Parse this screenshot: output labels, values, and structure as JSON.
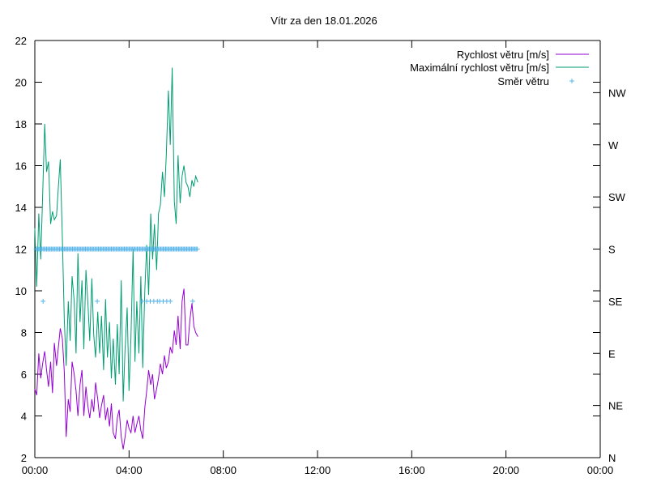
{
  "chart_data": {
    "type": "line",
    "title": "Vítr za den 18.01.2026",
    "x_ticks": [
      "00:00",
      "04:00",
      "08:00",
      "12:00",
      "16:00",
      "20:00",
      "00:00"
    ],
    "x_range_hours": [
      0,
      24
    ],
    "y_ticks": [
      "2",
      "4",
      "6",
      "8",
      "10",
      "12",
      "14",
      "16",
      "18",
      "20",
      "22"
    ],
    "ylim": [
      2,
      22
    ],
    "y2_ticks": [
      "N",
      "NE",
      "E",
      "SE",
      "S",
      "SW",
      "W",
      "NW"
    ],
    "grid": false,
    "legend_position": "top-right",
    "series": [
      {
        "name": "Rychlost větru [m/s]",
        "color": "#9400d3",
        "style": "line",
        "x": [
          0,
          0.08,
          0.17,
          0.25,
          0.33,
          0.42,
          0.5,
          0.58,
          0.67,
          0.75,
          0.83,
          0.92,
          1,
          1.08,
          1.17,
          1.25,
          1.33,
          1.42,
          1.5,
          1.58,
          1.67,
          1.75,
          1.83,
          1.92,
          2,
          2.08,
          2.17,
          2.25,
          2.33,
          2.42,
          2.5,
          2.58,
          2.67,
          2.75,
          2.83,
          2.92,
          3,
          3.08,
          3.17,
          3.25,
          3.33,
          3.42,
          3.5,
          3.58,
          3.67,
          3.75,
          3.83,
          3.92,
          4,
          4.08,
          4.17,
          4.25,
          4.33,
          4.42,
          4.5,
          4.58,
          4.67,
          4.75,
          4.83,
          4.92,
          5,
          5.08,
          5.17,
          5.25,
          5.33,
          5.42,
          5.5,
          5.58,
          5.67,
          5.75,
          5.83,
          5.92,
          6,
          6.08,
          6.17,
          6.25,
          6.33,
          6.42,
          6.5,
          6.58,
          6.67,
          6.75,
          6.83,
          6.92
        ],
        "values": [
          5.3,
          5.0,
          7.0,
          5.8,
          6.5,
          7.1,
          6.2,
          5.4,
          6.6,
          5.1,
          7.5,
          6.4,
          7.3,
          8.2,
          7.7,
          6.1,
          3.0,
          4.8,
          4.2,
          6.6,
          6.0,
          5.2,
          4.0,
          5.5,
          6.2,
          4.0,
          5.4,
          4.5,
          3.9,
          4.8,
          4.2,
          5.6,
          4.8,
          3.9,
          4.5,
          5.0,
          3.8,
          4.4,
          3.5,
          4.6,
          3.2,
          2.9,
          3.9,
          4.3,
          3.0,
          2.4,
          3.0,
          3.8,
          3.4,
          3.2,
          4.0,
          3.2,
          3.6,
          4.0,
          3.3,
          2.9,
          4.4,
          5.2,
          6.2,
          5.5,
          6.0,
          4.8,
          5.3,
          5.8,
          6.5,
          6.0,
          6.9,
          6.3,
          6.6,
          7.3,
          7.0,
          8.1,
          7.4,
          8.8,
          7.2,
          9.5,
          10.1,
          7.4,
          7.4,
          8.6,
          9.4,
          8.3,
          8.0,
          7.8
        ],
        "note": ""
      },
      {
        "name": "Maximální rychlost větru [m/s]",
        "color": "#009e73",
        "style": "line",
        "x": [
          0,
          0.08,
          0.17,
          0.25,
          0.33,
          0.42,
          0.5,
          0.58,
          0.67,
          0.75,
          0.83,
          0.92,
          1,
          1.08,
          1.17,
          1.25,
          1.33,
          1.42,
          1.5,
          1.58,
          1.67,
          1.75,
          1.83,
          1.92,
          2,
          2.08,
          2.17,
          2.25,
          2.33,
          2.42,
          2.5,
          2.58,
          2.67,
          2.75,
          2.83,
          2.92,
          3,
          3.08,
          3.17,
          3.25,
          3.33,
          3.42,
          3.5,
          3.58,
          3.67,
          3.75,
          3.83,
          3.92,
          4,
          4.08,
          4.17,
          4.25,
          4.33,
          4.42,
          4.5,
          4.58,
          4.67,
          4.75,
          4.83,
          4.92,
          5,
          5.08,
          5.17,
          5.25,
          5.33,
          5.42,
          5.5,
          5.58,
          5.67,
          5.75,
          5.83,
          5.92,
          6,
          6.08,
          6.17,
          6.25,
          6.33,
          6.42,
          6.5,
          6.58,
          6.67,
          6.75,
          6.83,
          6.92
        ],
        "values": [
          13.0,
          10.2,
          13.7,
          11.5,
          14.5,
          18.0,
          15.7,
          16.2,
          13.2,
          13.8,
          13.4,
          13.6,
          15.0,
          16.3,
          12.5,
          8.6,
          6.4,
          9.5,
          7.6,
          10.7,
          9.5,
          7.0,
          11.8,
          8.5,
          10.5,
          7.2,
          11.0,
          9.5,
          7.6,
          10.6,
          7.9,
          6.8,
          9.0,
          7.0,
          8.8,
          6.2,
          9.6,
          6.8,
          8.5,
          5.8,
          7.7,
          5.5,
          8.4,
          6.0,
          10.5,
          4.7,
          7.2,
          9.2,
          5.2,
          7.8,
          12.0,
          6.6,
          9.5,
          7.0,
          10.7,
          6.3,
          10.0,
          12.2,
          9.8,
          13.7,
          11.5,
          13.2,
          11.0,
          13.7,
          14.1,
          15.7,
          14.5,
          16.5,
          19.6,
          17.0,
          20.7,
          14.3,
          13.2,
          16.5,
          14.2,
          15.5,
          16.0,
          15.2,
          15.0,
          14.5,
          15.3,
          15.0,
          15.5,
          15.2
        ],
        "note": ""
      },
      {
        "name": "Směr větru",
        "color": "#56b4e9",
        "style": "points",
        "x": [
          0.05,
          0.1,
          0.15,
          0.2,
          0.25,
          0.3,
          0.35,
          0.4,
          0.45,
          0.5,
          0.55,
          0.6,
          0.65,
          0.7,
          0.75,
          0.8,
          0.85,
          0.9,
          0.95,
          1.0,
          1.05,
          1.1,
          1.15,
          1.2,
          1.25,
          1.3,
          1.35,
          1.4,
          1.45,
          1.5,
          1.55,
          1.6,
          1.65,
          1.7,
          1.75,
          1.8,
          1.85,
          1.9,
          1.95,
          2.0,
          2.05,
          2.1,
          2.15,
          2.2,
          2.25,
          2.3,
          2.35,
          2.4,
          2.45,
          2.5,
          2.55,
          2.6,
          2.65,
          2.7,
          2.75,
          2.8,
          2.85,
          2.9,
          2.95,
          3.0,
          3.05,
          3.1,
          3.15,
          3.2,
          3.25,
          3.3,
          3.35,
          3.4,
          3.45,
          3.5,
          3.55,
          3.6,
          3.65,
          3.7,
          3.75,
          3.8,
          3.85,
          3.9,
          3.95,
          4.0,
          4.05,
          4.1,
          4.15,
          4.2,
          4.25,
          4.3,
          4.35,
          4.4,
          4.45,
          4.5,
          4.55,
          4.6,
          4.65,
          4.7,
          4.75,
          4.8,
          4.85,
          4.9,
          4.95,
          5.0,
          5.05,
          5.1,
          5.15,
          5.2,
          5.25,
          5.3,
          5.35,
          5.4,
          5.45,
          5.5,
          5.55,
          5.6,
          5.65,
          5.7,
          5.75,
          5.8,
          5.85,
          5.9,
          5.95,
          6.0,
          6.05,
          6.1,
          6.15,
          6.2,
          6.25,
          6.3,
          6.35,
          6.4,
          6.45,
          6.5,
          6.55,
          6.6,
          6.65,
          6.7,
          6.75,
          6.8,
          6.85,
          6.9,
          0.35,
          2.65,
          4.55,
          4.75,
          4.9,
          5.05,
          5.2,
          5.3,
          5.45,
          5.6,
          5.75,
          6.7
        ],
        "directions": [
          "S",
          "S",
          "S",
          "S",
          "S",
          "S",
          "S",
          "S",
          "S",
          "S",
          "S",
          "S",
          "S",
          "S",
          "S",
          "S",
          "S",
          "S",
          "S",
          "S",
          "S",
          "S",
          "S",
          "S",
          "S",
          "S",
          "S",
          "S",
          "S",
          "S",
          "S",
          "S",
          "S",
          "S",
          "S",
          "S",
          "S",
          "S",
          "S",
          "S",
          "S",
          "S",
          "S",
          "S",
          "S",
          "S",
          "S",
          "S",
          "S",
          "S",
          "S",
          "S",
          "S",
          "S",
          "S",
          "S",
          "S",
          "S",
          "S",
          "S",
          "S",
          "S",
          "S",
          "S",
          "S",
          "S",
          "S",
          "S",
          "S",
          "S",
          "S",
          "S",
          "S",
          "S",
          "S",
          "S",
          "S",
          "S",
          "S",
          "S",
          "S",
          "S",
          "S",
          "S",
          "S",
          "S",
          "S",
          "S",
          "S",
          "S",
          "S",
          "S",
          "S",
          "S",
          "S",
          "S",
          "S",
          "S",
          "S",
          "S",
          "S",
          "S",
          "S",
          "S",
          "S",
          "S",
          "S",
          "S",
          "S",
          "S",
          "S",
          "S",
          "S",
          "S",
          "S",
          "S",
          "S",
          "S",
          "S",
          "S",
          "S",
          "S",
          "S",
          "S",
          "S",
          "S",
          "S",
          "S",
          "S",
          "S",
          "S",
          "S",
          "S",
          "S",
          "S",
          "S",
          "S",
          "S",
          "SE",
          "SE",
          "SE",
          "SE",
          "SE",
          "SE",
          "SE",
          "SE",
          "SE",
          "SE",
          "SE",
          "SE"
        ]
      }
    ]
  }
}
